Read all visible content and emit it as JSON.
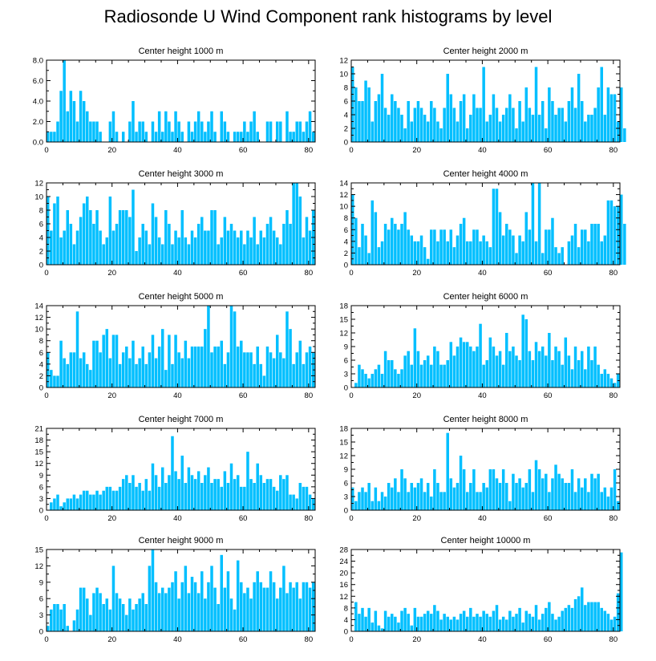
{
  "title": "Radiosonde U Wind Component rank histograms by level",
  "colors": {
    "bar": "#00BFFF",
    "axis": "#000000",
    "background": "#ffffff"
  },
  "chart_data": [
    {
      "type": "bar",
      "title": "Center height 1000 m",
      "xlim": [
        0,
        82
      ],
      "ylim": [
        0,
        8
      ],
      "xticks": [
        "0",
        "20",
        "40",
        "60",
        "80"
      ],
      "yticks": [
        "0.0",
        "2.0",
        "4.0",
        "6.0",
        "8.0"
      ],
      "values": [
        1,
        1,
        1,
        2,
        5,
        8,
        3,
        5,
        4,
        2,
        5,
        4,
        3,
        2,
        2,
        2,
        1,
        0,
        0,
        2,
        3,
        1,
        0,
        1,
        0,
        2,
        4,
        1,
        2,
        2,
        1,
        0,
        2,
        1,
        3,
        1,
        3,
        2,
        1,
        3,
        2,
        1,
        0,
        2,
        1,
        2,
        3,
        2,
        1,
        2,
        3,
        1,
        0,
        3,
        2,
        1,
        0,
        1,
        1,
        1,
        2,
        1,
        2,
        3,
        1,
        0,
        0,
        2,
        2,
        0,
        2,
        2,
        0,
        3,
        1,
        1,
        2,
        2,
        1,
        2,
        3,
        1
      ]
    },
    {
      "type": "bar",
      "title": "Center height 2000 m",
      "xlim": [
        0,
        82
      ],
      "ylim": [
        0,
        12
      ],
      "xticks": [
        "0",
        "20",
        "40",
        "60",
        "80"
      ],
      "yticks": [
        "0",
        "2",
        "4",
        "6",
        "8",
        "10",
        "12"
      ],
      "values": [
        11,
        8,
        6,
        6,
        9,
        8,
        3,
        6,
        7,
        10,
        5,
        4,
        7,
        6,
        5,
        4,
        2,
        6,
        3,
        5,
        6,
        5,
        4,
        3,
        6,
        5,
        3,
        2,
        5,
        10,
        7,
        5,
        3,
        6,
        7,
        2,
        4,
        7,
        5,
        5,
        11,
        3,
        4,
        7,
        5,
        3,
        4,
        5,
        7,
        5,
        2,
        6,
        3,
        8,
        5,
        4,
        11,
        4,
        6,
        2,
        8,
        6,
        4,
        5,
        5,
        3,
        6,
        8,
        5,
        10,
        6,
        3,
        4,
        4,
        5,
        8,
        11,
        4,
        8,
        7,
        7,
        3,
        8,
        2
      ]
    },
    {
      "type": "bar",
      "title": "Center height 3000 m",
      "xlim": [
        0,
        82
      ],
      "ylim": [
        0,
        12
      ],
      "xticks": [
        "0",
        "20",
        "40",
        "60",
        "80"
      ],
      "yticks": [
        "0",
        "2",
        "4",
        "6",
        "8",
        "10",
        "12"
      ],
      "values": [
        10,
        5,
        9,
        10,
        4,
        5,
        8,
        6,
        3,
        5,
        7,
        9,
        10,
        8,
        6,
        8,
        5,
        3,
        4,
        10,
        5,
        6,
        8,
        8,
        8,
        7,
        11,
        2,
        4,
        6,
        5,
        3,
        9,
        7,
        4,
        3,
        8,
        6,
        3,
        5,
        4,
        8,
        4,
        3,
        5,
        4,
        6,
        7,
        5,
        5,
        8,
        8,
        3,
        4,
        7,
        5,
        6,
        5,
        4,
        5,
        3,
        5,
        4,
        7,
        3,
        5,
        4,
        6,
        7,
        5,
        4,
        3,
        6,
        8,
        6,
        12,
        12,
        10,
        4,
        7,
        5,
        8
      ]
    },
    {
      "type": "bar",
      "title": "Center height 4000 m",
      "xlim": [
        0,
        82
      ],
      "ylim": [
        0,
        14
      ],
      "xticks": [
        "0",
        "20",
        "40",
        "60",
        "80"
      ],
      "yticks": [
        "0",
        "2",
        "4",
        "6",
        "8",
        "10",
        "12",
        "14"
      ],
      "values": [
        12,
        8,
        3,
        7,
        5,
        2,
        11,
        9,
        3,
        4,
        7,
        6,
        8,
        7,
        6,
        7,
        9,
        6,
        5,
        4,
        4,
        5,
        3,
        1,
        6,
        6,
        4,
        6,
        6,
        4,
        6,
        3,
        5,
        7,
        8,
        4,
        4,
        6,
        6,
        4,
        5,
        4,
        3,
        13,
        13,
        9,
        5,
        7,
        6,
        5,
        2,
        5,
        4,
        9,
        6,
        14,
        4,
        14,
        2,
        6,
        6,
        8,
        3,
        2,
        3,
        0,
        4,
        5,
        7,
        3,
        6,
        6,
        4,
        7,
        7,
        7,
        4,
        5,
        11,
        11,
        10,
        10,
        12,
        7
      ]
    },
    {
      "type": "bar",
      "title": "Center height 5000 m",
      "xlim": [
        0,
        82
      ],
      "ylim": [
        0,
        14
      ],
      "xticks": [
        "0",
        "20",
        "40",
        "60",
        "80"
      ],
      "yticks": [
        "0",
        "2",
        "4",
        "6",
        "8",
        "10",
        "12",
        "14"
      ],
      "values": [
        6,
        3,
        2,
        2,
        8,
        5,
        4,
        6,
        6,
        13,
        5,
        6,
        4,
        3,
        8,
        8,
        6,
        9,
        10,
        5,
        9,
        9,
        4,
        6,
        7,
        5,
        8,
        4,
        5,
        7,
        4,
        6,
        9,
        5,
        7,
        10,
        3,
        9,
        4,
        9,
        6,
        5,
        8,
        5,
        7,
        7,
        7,
        7,
        10,
        14,
        6,
        7,
        7,
        8,
        4,
        6,
        14,
        13,
        7,
        8,
        6,
        6,
        6,
        4,
        7,
        4,
        2,
        7,
        6,
        5,
        9,
        6,
        5,
        13,
        10,
        4,
        6,
        8,
        4,
        6,
        7,
        6
      ]
    },
    {
      "type": "bar",
      "title": "Center height 6000 m",
      "xlim": [
        0,
        82
      ],
      "ylim": [
        0,
        18
      ],
      "xticks": [
        "0",
        "20",
        "40",
        "60",
        "80"
      ],
      "yticks": [
        "0",
        "3",
        "6",
        "9",
        "12",
        "15",
        "18"
      ],
      "values": [
        0,
        1,
        5,
        4,
        3,
        2,
        3,
        4,
        5,
        3,
        8,
        6,
        6,
        4,
        3,
        4,
        7,
        8,
        5,
        13,
        8,
        5,
        6,
        7,
        5,
        9,
        8,
        5,
        5,
        6,
        10,
        7,
        9,
        11,
        10,
        10,
        9,
        8,
        9,
        14,
        5,
        6,
        11,
        9,
        7,
        8,
        5,
        12,
        8,
        9,
        7,
        6,
        16,
        15,
        8,
        6,
        10,
        8,
        9,
        7,
        12,
        6,
        9,
        8,
        5,
        11,
        7,
        4,
        9,
        6,
        8,
        4,
        9,
        6,
        9,
        5,
        3,
        4,
        3,
        2,
        1,
        3
      ]
    },
    {
      "type": "bar",
      "title": "Center height 7000 m",
      "xlim": [
        0,
        82
      ],
      "ylim": [
        0,
        21
      ],
      "xticks": [
        "0",
        "20",
        "40",
        "60",
        "80"
      ],
      "yticks": [
        "0",
        "3",
        "6",
        "9",
        "12",
        "15",
        "18",
        "21"
      ],
      "values": [
        0,
        2,
        3,
        4,
        1,
        2,
        3,
        3,
        4,
        3,
        4,
        5,
        5,
        4,
        4,
        5,
        4,
        5,
        6,
        6,
        5,
        5,
        6,
        8,
        9,
        7,
        9,
        6,
        7,
        5,
        8,
        5,
        12,
        9,
        6,
        11,
        7,
        9,
        19,
        10,
        8,
        14,
        7,
        11,
        9,
        8,
        10,
        7,
        9,
        11,
        7,
        8,
        8,
        6,
        10,
        7,
        12,
        8,
        9,
        6,
        6,
        15,
        8,
        7,
        12,
        9,
        7,
        8,
        8,
        6,
        5,
        9,
        8,
        9,
        4,
        4,
        3,
        7,
        6,
        6,
        4,
        3
      ]
    },
    {
      "type": "bar",
      "title": "Center height 8000 m",
      "xlim": [
        0,
        82
      ],
      "ylim": [
        0,
        18
      ],
      "xticks": [
        "0",
        "20",
        "40",
        "60",
        "80"
      ],
      "yticks": [
        "0",
        "3",
        "6",
        "9",
        "12",
        "15",
        "18"
      ],
      "values": [
        5,
        2,
        4,
        5,
        4,
        6,
        2,
        5,
        2,
        4,
        3,
        6,
        5,
        7,
        4,
        9,
        7,
        4,
        6,
        5,
        6,
        7,
        4,
        6,
        3,
        9,
        6,
        4,
        4,
        17,
        7,
        5,
        6,
        12,
        9,
        4,
        6,
        9,
        4,
        4,
        6,
        5,
        9,
        9,
        7,
        6,
        9,
        6,
        2,
        8,
        6,
        7,
        5,
        6,
        9,
        4,
        11,
        9,
        7,
        8,
        4,
        7,
        10,
        8,
        7,
        6,
        6,
        9,
        4,
        7,
        5,
        7,
        4,
        8,
        7,
        8,
        4,
        5,
        3,
        5,
        9,
        2
      ]
    },
    {
      "type": "bar",
      "title": "Center height 9000 m",
      "xlim": [
        0,
        82
      ],
      "ylim": [
        0,
        15
      ],
      "xticks": [
        "0",
        "20",
        "40",
        "60",
        "80"
      ],
      "yticks": [
        "0",
        "3",
        "6",
        "9",
        "12",
        "15"
      ],
      "values": [
        1,
        4,
        5,
        5,
        4,
        5,
        1,
        0,
        2,
        4,
        8,
        8,
        6,
        3,
        7,
        8,
        7,
        5,
        6,
        4,
        12,
        7,
        6,
        5,
        3,
        6,
        4,
        5,
        6,
        7,
        5,
        12,
        15,
        9,
        7,
        8,
        7,
        8,
        9,
        11,
        6,
        9,
        12,
        7,
        10,
        9,
        7,
        11,
        6,
        9,
        12,
        8,
        5,
        14,
        8,
        11,
        6,
        4,
        13,
        9,
        7,
        8,
        6,
        9,
        11,
        9,
        8,
        8,
        11,
        9,
        6,
        8,
        12,
        7,
        9,
        8,
        9,
        6,
        9,
        9,
        8,
        9
      ]
    },
    {
      "type": "bar",
      "title": "Center height 10000 m",
      "xlim": [
        0,
        82
      ],
      "ylim": [
        0,
        28
      ],
      "xticks": [
        "0",
        "20",
        "40",
        "60",
        "80"
      ],
      "yticks": [
        "0",
        "4",
        "8",
        "12",
        "16",
        "20",
        "24",
        "28"
      ],
      "values": [
        0,
        10,
        6,
        8,
        5,
        8,
        3,
        7,
        2,
        1,
        7,
        5,
        6,
        5,
        3,
        7,
        8,
        6,
        2,
        8,
        5,
        5,
        6,
        7,
        6,
        9,
        7,
        4,
        6,
        5,
        4,
        5,
        4,
        6,
        7,
        5,
        8,
        5,
        6,
        5,
        7,
        6,
        5,
        7,
        9,
        4,
        5,
        4,
        7,
        5,
        6,
        8,
        3,
        7,
        6,
        5,
        9,
        4,
        6,
        8,
        10,
        6,
        4,
        5,
        7,
        8,
        9,
        8,
        11,
        12,
        15,
        9,
        10,
        10,
        10,
        10,
        8,
        7,
        6,
        4,
        5,
        13,
        27
      ]
    }
  ]
}
